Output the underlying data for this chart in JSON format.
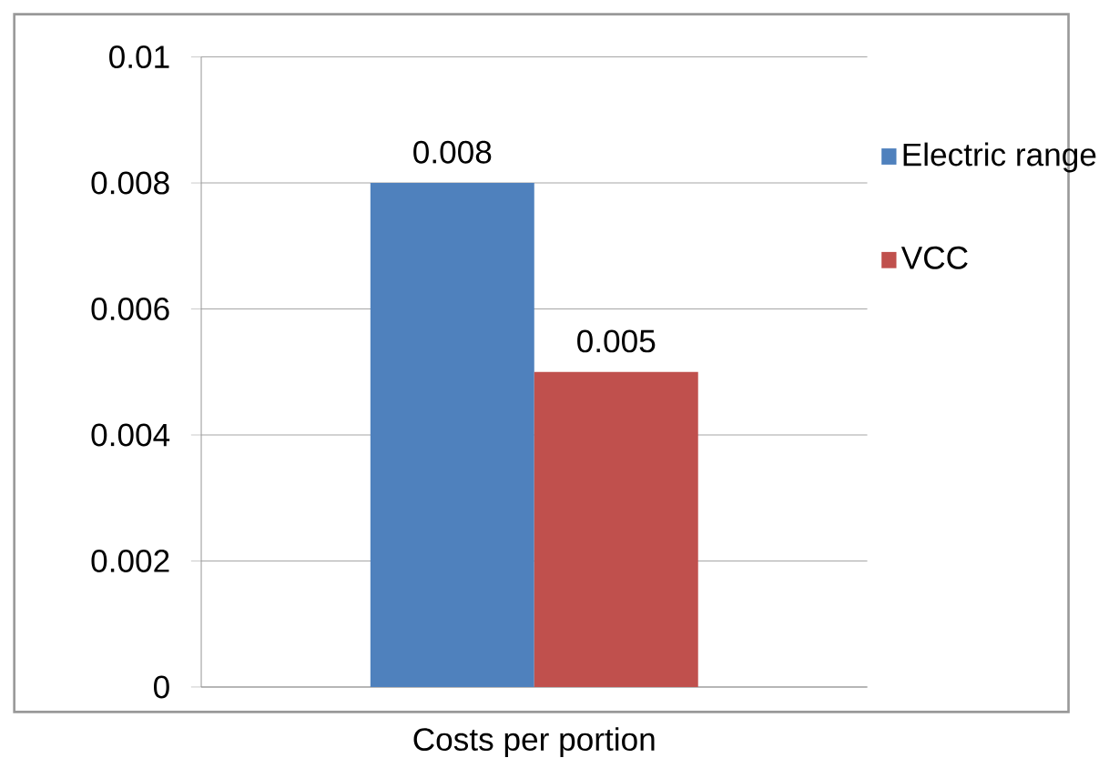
{
  "chart_data": {
    "type": "bar",
    "categories": [
      "Costs per portion"
    ],
    "series": [
      {
        "name": "Electric range",
        "color": "#4f81bd",
        "values": [
          0.008
        ]
      },
      {
        "name": "VCC",
        "color": "#c0504d",
        "values": [
          0.005
        ]
      }
    ],
    "ylim": [
      0,
      0.01
    ],
    "yticks": [
      0,
      0.002,
      0.004,
      0.006,
      0.008,
      0.01
    ],
    "grid": "y",
    "legend": "right",
    "data_labels": true
  }
}
